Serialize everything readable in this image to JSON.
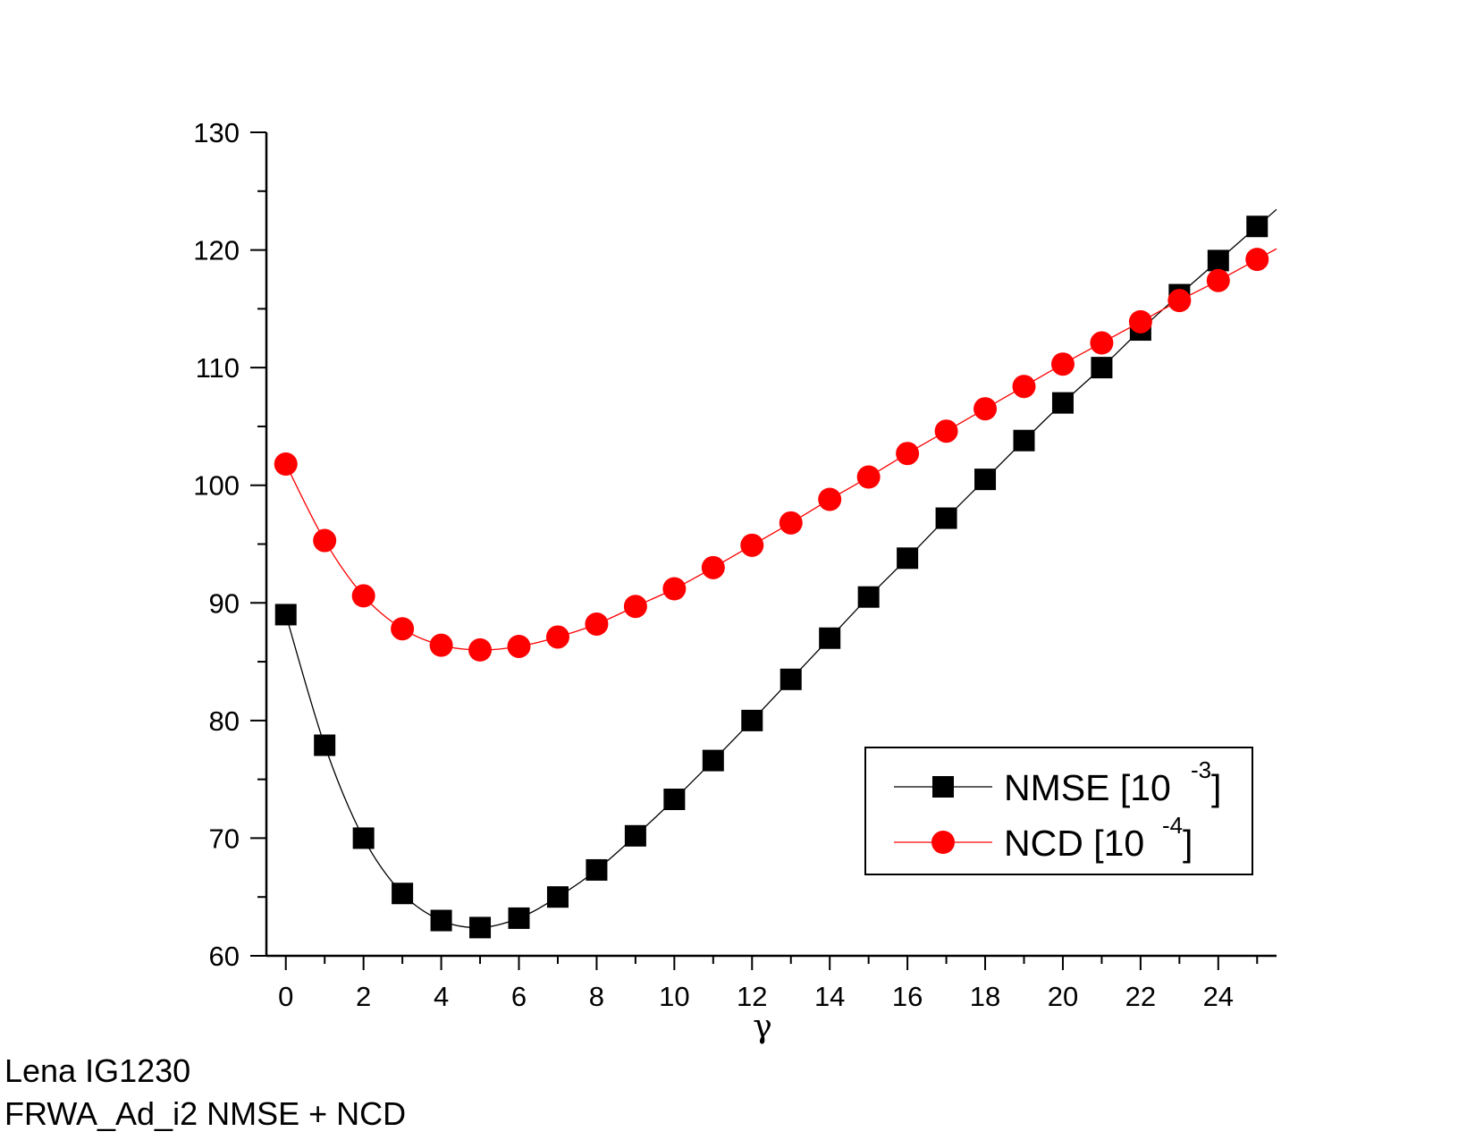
{
  "chart_data": {
    "type": "line",
    "xlabel": "γ",
    "ylabel": "",
    "xlim": [
      -0.5,
      25.5
    ],
    "ylim": [
      60,
      130
    ],
    "x_ticks": [
      0,
      2,
      4,
      6,
      8,
      10,
      12,
      14,
      16,
      18,
      20,
      22,
      24
    ],
    "y_ticks": [
      60,
      70,
      80,
      90,
      100,
      110,
      120,
      130
    ],
    "grid": false,
    "legend_position": "bottom-right",
    "x": [
      0,
      1,
      2,
      3,
      4,
      5,
      6,
      7,
      8,
      9,
      10,
      11,
      12,
      13,
      14,
      15,
      16,
      17,
      18,
      19,
      20,
      21,
      22,
      23,
      24,
      25
    ],
    "series": [
      {
        "name": "NMSE [10",
        "name_exponent": "-3",
        "name_suffix": "]",
        "color": "#000000",
        "marker": "square",
        "values": [
          89.0,
          77.9,
          70.0,
          65.3,
          63.0,
          62.4,
          63.2,
          65.0,
          67.3,
          70.2,
          73.3,
          76.6,
          80.0,
          83.5,
          87.0,
          90.5,
          93.8,
          97.2,
          100.5,
          103.8,
          107.0,
          110.0,
          113.2,
          116.2,
          119.1,
          122.0
        ]
      },
      {
        "name": "NCD [10",
        "name_exponent": "-4",
        "name_suffix": "]",
        "color": "#ff0000",
        "marker": "circle",
        "values": [
          101.8,
          95.3,
          90.6,
          87.8,
          86.4,
          86.0,
          86.3,
          87.1,
          88.2,
          89.7,
          91.2,
          93.0,
          94.9,
          96.8,
          98.8,
          100.7,
          102.7,
          104.6,
          106.5,
          108.4,
          110.3,
          112.1,
          113.9,
          115.7,
          117.4,
          119.2
        ]
      }
    ]
  },
  "caption": {
    "line1": "Lena IG1230",
    "line2": "FRWA_Ad_i2 NMSE + NCD"
  }
}
